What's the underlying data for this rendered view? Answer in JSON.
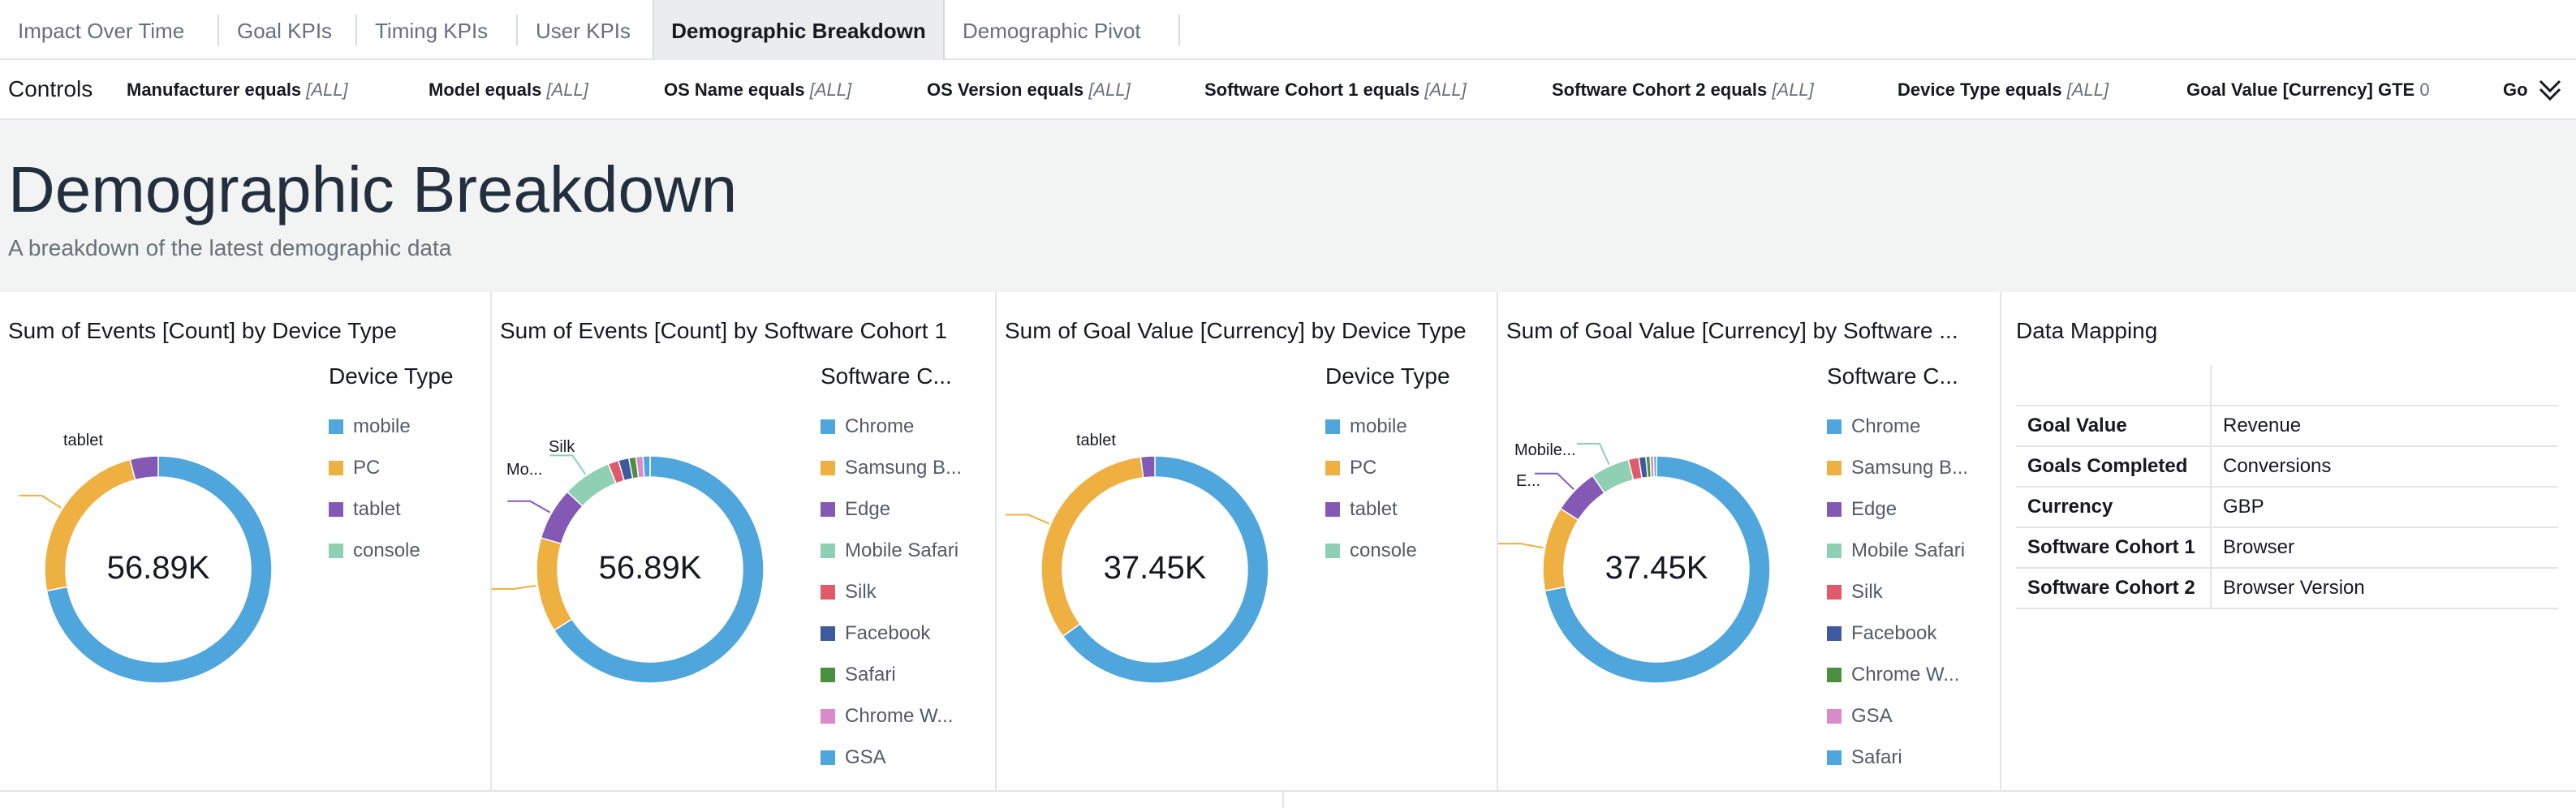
{
  "tabs": [
    {
      "label": "Impact Over Time",
      "active": false
    },
    {
      "label": "Goal KPIs",
      "active": false
    },
    {
      "label": "Timing KPIs",
      "active": false
    },
    {
      "label": "User KPIs",
      "active": false
    },
    {
      "label": "Demographic Breakdown",
      "active": true
    },
    {
      "label": "Demographic Pivot",
      "active": false
    }
  ],
  "controls": {
    "title": "Controls",
    "filters": [
      {
        "name": "Manufacturer equals",
        "value": "[ALL]"
      },
      {
        "name": "Model equals",
        "value": "[ALL]"
      },
      {
        "name": "OS Name equals",
        "value": "[ALL]"
      },
      {
        "name": "OS Version equals",
        "value": "[ALL]"
      },
      {
        "name": "Software Cohort 1 equals",
        "value": "[ALL]"
      },
      {
        "name": "Software Cohort 2 equals",
        "value": "[ALL]"
      },
      {
        "name": "Device Type equals",
        "value": "[ALL]"
      },
      {
        "name": "Goal Value [Currency] GTE",
        "value": "0"
      },
      {
        "name": "Go",
        "value": ""
      }
    ]
  },
  "header": {
    "title": "Demographic Breakdown",
    "subtitle": "A breakdown of the latest demographic data"
  },
  "colors": {
    "blue": "#4ea6dc",
    "orange": "#efb042",
    "purple": "#8459b5",
    "mint": "#8fd0b4",
    "red": "#e05a6b",
    "navy": "#3e5a9e",
    "green": "#4c8f3f",
    "pink": "#d98acb",
    "sky": "#4ea6dc"
  },
  "chart_data": [
    {
      "type": "pie",
      "title": "Sum of Events [Count] by Device Type",
      "legend_title": "Device Type",
      "center_label": "56.89K",
      "categories": [
        "mobile",
        "PC",
        "tablet",
        "console"
      ],
      "values": [
        0.72,
        0.24,
        0.04,
        0.0
      ],
      "colors": [
        "#4ea6dc",
        "#efb042",
        "#8459b5",
        "#8fd0b4"
      ],
      "callouts": [
        "tablet"
      ]
    },
    {
      "type": "pie",
      "title": "Sum of Events [Count] by Software Cohort 1",
      "legend_title": "Software C...",
      "center_label": "56.89K",
      "categories": [
        "Chrome",
        "Samsung B...",
        "Edge",
        "Mobile Safari",
        "Silk",
        "Facebook",
        "Safari",
        "Chrome W...",
        "GSA"
      ],
      "values": [
        0.66,
        0.135,
        0.075,
        0.07,
        0.015,
        0.015,
        0.01,
        0.01,
        0.01
      ],
      "colors": [
        "#4ea6dc",
        "#efb042",
        "#8459b5",
        "#8fd0b4",
        "#e05a6b",
        "#3e5a9e",
        "#4c8f3f",
        "#d98acb",
        "#4ea6dc"
      ],
      "callouts": [
        "Silk",
        "Mo..."
      ]
    },
    {
      "type": "pie",
      "title": "Sum of Goal Value [Currency] by Device Type",
      "legend_title": "Device Type",
      "center_label": "37.45K",
      "categories": [
        "mobile",
        "PC",
        "tablet",
        "console"
      ],
      "values": [
        0.65,
        0.33,
        0.02,
        0.0
      ],
      "colors": [
        "#4ea6dc",
        "#efb042",
        "#8459b5",
        "#8fd0b4"
      ],
      "callouts": [
        "tablet"
      ]
    },
    {
      "type": "pie",
      "title": "Sum of Goal Value [Currency] by Software ...",
      "legend_title": "Software C...",
      "center_label": "37.45K",
      "categories": [
        "Chrome",
        "Samsung B...",
        "Edge",
        "Mobile Safari",
        "Silk",
        "Facebook",
        "Chrome W...",
        "GSA",
        "Safari"
      ],
      "values": [
        0.72,
        0.12,
        0.065,
        0.055,
        0.015,
        0.01,
        0.006,
        0.005,
        0.004
      ],
      "colors": [
        "#4ea6dc",
        "#efb042",
        "#8459b5",
        "#8fd0b4",
        "#e05a6b",
        "#3e5a9e",
        "#4c8f3f",
        "#d98acb",
        "#4ea6dc"
      ],
      "callouts": [
        "Mobile...",
        "E..."
      ]
    }
  ],
  "mapping": {
    "title": "Data Mapping",
    "rows": [
      {
        "key": "Goal Value",
        "value": "Revenue"
      },
      {
        "key": "Goals Completed",
        "value": "Conversions"
      },
      {
        "key": "Currency",
        "value": "GBP"
      },
      {
        "key": "Software Cohort 1",
        "value": "Browser"
      },
      {
        "key": "Software Cohort 2",
        "value": "Browser Version"
      }
    ]
  }
}
